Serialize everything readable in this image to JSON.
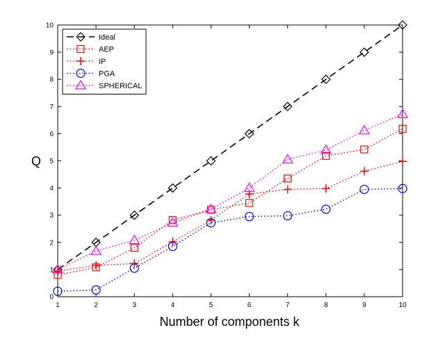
{
  "chart_data": {
    "type": "line",
    "title": "",
    "xlabel": "Number of components k",
    "ylabel": "Q",
    "xlim": [
      1,
      10
    ],
    "ylim": [
      0,
      10
    ],
    "x_ticks": [
      1,
      2,
      3,
      4,
      5,
      6,
      7,
      8,
      9,
      10
    ],
    "y_ticks": [
      0,
      1,
      2,
      3,
      4,
      5,
      6,
      7,
      8,
      9,
      10
    ],
    "grid": false,
    "legend_position": "top-left",
    "x": [
      1,
      2,
      3,
      4,
      5,
      6,
      7,
      8,
      9,
      10
    ],
    "series": [
      {
        "name": "Ideal",
        "values": [
          1,
          2,
          3,
          4,
          5,
          6,
          7,
          8,
          9,
          10
        ],
        "color": "#000000",
        "marker": "diamond",
        "line": "dashed"
      },
      {
        "name": "AEP",
        "values": [
          0.8,
          1.08,
          1.8,
          2.82,
          3.2,
          3.45,
          4.35,
          5.18,
          5.42,
          6.18
        ],
        "color": "#ff0000",
        "marker": "square",
        "line": "dotted"
      },
      {
        "name": "IP",
        "values": [
          0.95,
          1.15,
          1.22,
          2.02,
          2.82,
          3.78,
          3.95,
          3.98,
          4.62,
          4.98
        ],
        "color": "#ff0000",
        "marker": "plus",
        "line": "dotted"
      },
      {
        "name": "PGA",
        "values": [
          0.2,
          0.25,
          1.05,
          1.85,
          2.72,
          2.95,
          2.98,
          3.22,
          3.95,
          3.98
        ],
        "color": "#0000ff",
        "marker": "circle",
        "line": "dotted"
      },
      {
        "name": "SPHERICAL",
        "values": [
          1.0,
          1.68,
          2.08,
          2.72,
          3.22,
          4.0,
          5.05,
          5.4,
          6.12,
          6.72
        ],
        "color": "#ff00ff",
        "marker": "triangle",
        "line": "dotted"
      }
    ]
  }
}
